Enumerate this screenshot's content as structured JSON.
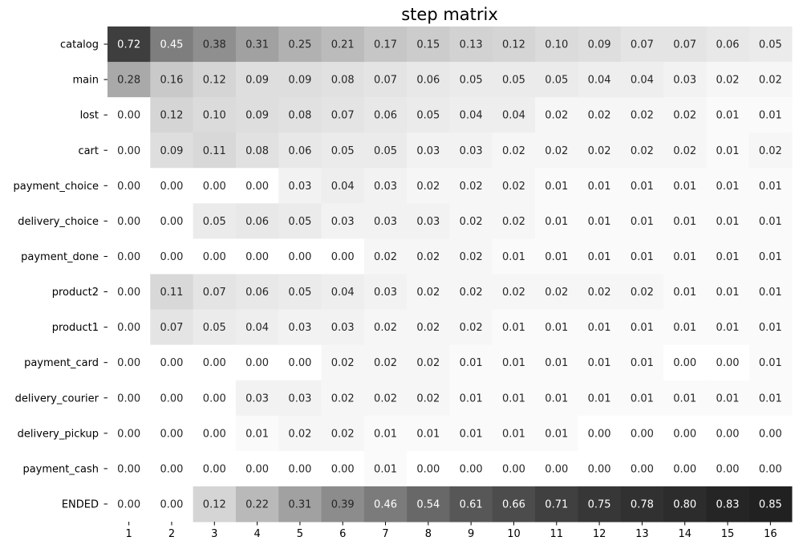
{
  "chart_data": {
    "type": "heatmap",
    "title": "step matrix",
    "xlabel": "",
    "ylabel": "",
    "x": [
      "1",
      "2",
      "3",
      "4",
      "5",
      "6",
      "7",
      "8",
      "9",
      "10",
      "11",
      "12",
      "13",
      "14",
      "15",
      "16"
    ],
    "y": [
      "catalog",
      "main",
      "lost",
      "cart",
      "payment_choice",
      "delivery_choice",
      "payment_done",
      "product2",
      "product1",
      "payment_card",
      "delivery_courier",
      "delivery_pickup",
      "payment_cash",
      "ENDED"
    ],
    "values": [
      [
        0.72,
        0.45,
        0.38,
        0.31,
        0.25,
        0.21,
        0.17,
        0.15,
        0.13,
        0.12,
        0.1,
        0.09,
        0.07,
        0.07,
        0.06,
        0.05
      ],
      [
        0.28,
        0.16,
        0.12,
        0.09,
        0.09,
        0.08,
        0.07,
        0.06,
        0.05,
        0.05,
        0.05,
        0.04,
        0.04,
        0.03,
        0.02,
        0.02
      ],
      [
        0.0,
        0.12,
        0.1,
        0.09,
        0.08,
        0.07,
        0.06,
        0.05,
        0.04,
        0.04,
        0.02,
        0.02,
        0.02,
        0.02,
        0.01,
        0.01
      ],
      [
        0.0,
        0.09,
        0.11,
        0.08,
        0.06,
        0.05,
        0.05,
        0.03,
        0.03,
        0.02,
        0.02,
        0.02,
        0.02,
        0.02,
        0.01,
        0.02
      ],
      [
        0.0,
        0.0,
        0.0,
        0.0,
        0.03,
        0.04,
        0.03,
        0.02,
        0.02,
        0.02,
        0.01,
        0.01,
        0.01,
        0.01,
        0.01,
        0.01
      ],
      [
        0.0,
        0.0,
        0.05,
        0.06,
        0.05,
        0.03,
        0.03,
        0.03,
        0.02,
        0.02,
        0.01,
        0.01,
        0.01,
        0.01,
        0.01,
        0.01
      ],
      [
        0.0,
        0.0,
        0.0,
        0.0,
        0.0,
        0.0,
        0.02,
        0.02,
        0.02,
        0.01,
        0.01,
        0.01,
        0.01,
        0.01,
        0.01,
        0.01
      ],
      [
        0.0,
        0.11,
        0.07,
        0.06,
        0.05,
        0.04,
        0.03,
        0.02,
        0.02,
        0.02,
        0.02,
        0.02,
        0.02,
        0.01,
        0.01,
        0.01
      ],
      [
        0.0,
        0.07,
        0.05,
        0.04,
        0.03,
        0.03,
        0.02,
        0.02,
        0.02,
        0.01,
        0.01,
        0.01,
        0.01,
        0.01,
        0.01,
        0.01
      ],
      [
        0.0,
        0.0,
        0.0,
        0.0,
        0.0,
        0.02,
        0.02,
        0.02,
        0.01,
        0.01,
        0.01,
        0.01,
        0.01,
        0.0,
        0.0,
        0.01
      ],
      [
        0.0,
        0.0,
        0.0,
        0.03,
        0.03,
        0.02,
        0.02,
        0.02,
        0.01,
        0.01,
        0.01,
        0.01,
        0.01,
        0.01,
        0.01,
        0.01
      ],
      [
        0.0,
        0.0,
        0.0,
        0.01,
        0.02,
        0.02,
        0.01,
        0.01,
        0.01,
        0.01,
        0.01,
        0.0,
        0.0,
        0.0,
        0.0,
        0.0
      ],
      [
        0.0,
        0.0,
        0.0,
        0.0,
        0.0,
        0.0,
        0.01,
        0.0,
        0.0,
        0.0,
        0.0,
        0.0,
        0.0,
        0.0,
        0.0,
        0.0
      ],
      [
        0.0,
        0.0,
        0.12,
        0.22,
        0.31,
        0.39,
        0.46,
        0.54,
        0.61,
        0.66,
        0.71,
        0.75,
        0.78,
        0.8,
        0.83,
        0.85
      ]
    ],
    "value_format": "0.00",
    "colormap": "greys",
    "colormap_low": "#ffffff",
    "colormap_high": "#000000",
    "value_range": [
      0,
      1
    ],
    "colorbar": false,
    "grid": false,
    "legend": "none"
  }
}
